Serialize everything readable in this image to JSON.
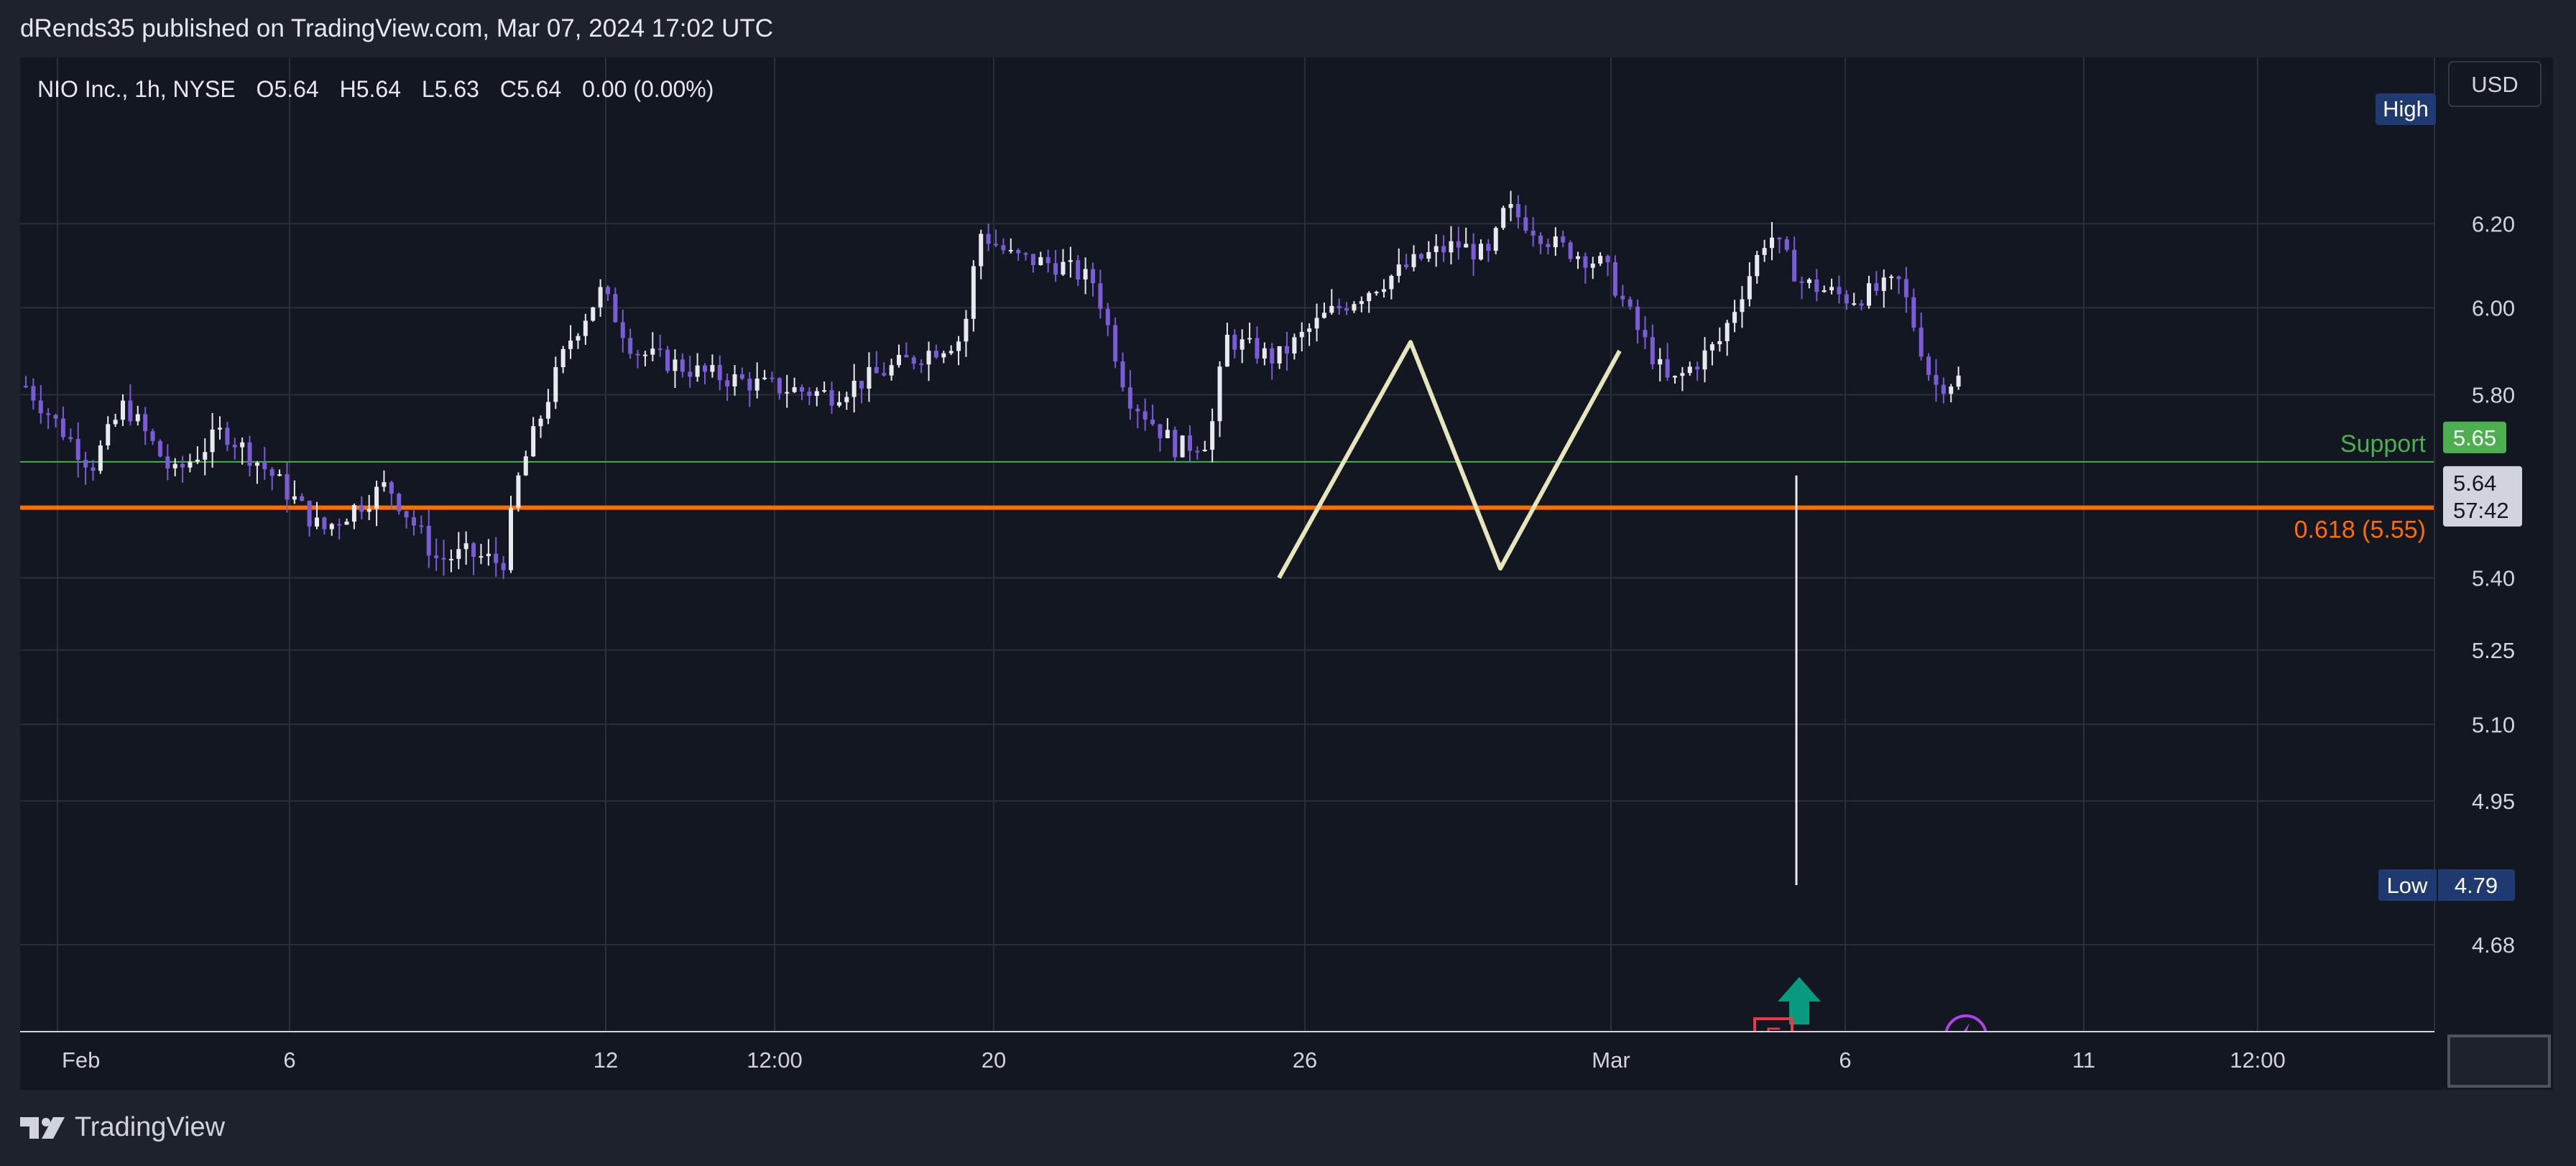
{
  "header": {
    "publisher_line": "dRends35 published on TradingView.com, Mar 07, 2024 17:02 UTC"
  },
  "footer": {
    "brand": "TradingView",
    "logo_icon": "tradingview-logo-icon"
  },
  "colors": {
    "background": "#131722",
    "grid": "#2a2e39",
    "up_candle": "#e9e9f0",
    "down_candle": "#7b5cd6",
    "support": "#4caf50",
    "fib": "#ff6d00",
    "pattern": "#e8e4bc",
    "current_price_bg": "#d1d4dc",
    "high_low_bg": "#1e3a70",
    "earnings": "#f23645",
    "dividend": "#b043e8",
    "arrow": "#089981"
  },
  "chart_data": {
    "type": "candlestick",
    "legend": {
      "symbol": "NIO Inc., 1h, NYSE",
      "open": "O5.64",
      "high": "H5.64",
      "low": "L5.63",
      "close": "C5.64",
      "change": "0.00 (0.00%)"
    },
    "currency_label": "USD",
    "y_scale": "log",
    "ylim": [
      4.62,
      6.32
    ],
    "y_ticks": [
      "6.20",
      "6.00",
      "5.80",
      "5.40",
      "5.25",
      "5.10",
      "4.95",
      "4.68"
    ],
    "x_ticks": [
      "Feb",
      "6",
      "12",
      "12:00",
      "20",
      "26",
      "Mar",
      "6",
      "11",
      "12:00"
    ],
    "bar_count": 260,
    "price_path": [
      [
        0,
        5.82
      ],
      [
        8,
        5.64
      ],
      [
        12,
        5.78
      ],
      [
        18,
        5.62
      ],
      [
        24,
        5.72
      ],
      [
        30,
        5.62
      ],
      [
        36,
        5.5
      ],
      [
        44,
        5.6
      ],
      [
        50,
        5.44
      ],
      [
        54,
        5.45
      ],
      [
        58,
        5.43
      ],
      [
        60,
        5.62
      ],
      [
        66,
        5.92
      ],
      [
        70,
        6.04
      ],
      [
        74,
        5.9
      ],
      [
        82,
        5.85
      ],
      [
        90,
        5.82
      ],
      [
        98,
        5.8
      ],
      [
        104,
        5.85
      ],
      [
        110,
        5.9
      ],
      [
        114,
        5.93
      ],
      [
        116,
        6.18
      ],
      [
        120,
        6.12
      ],
      [
        126,
        6.1
      ],
      [
        130,
        6.06
      ],
      [
        134,
        5.8
      ],
      [
        140,
        5.68
      ],
      [
        144,
        5.7
      ],
      [
        146,
        5.93
      ],
      [
        152,
        5.88
      ],
      [
        158,
        5.98
      ],
      [
        164,
        6.05
      ],
      [
        170,
        6.12
      ],
      [
        174,
        6.15
      ],
      [
        178,
        6.12
      ],
      [
        180,
        6.24
      ],
      [
        186,
        6.15
      ],
      [
        192,
        6.1
      ],
      [
        196,
        5.95
      ],
      [
        200,
        5.82
      ],
      [
        206,
        5.92
      ],
      [
        212,
        6.18
      ],
      [
        216,
        6.06
      ],
      [
        222,
        6.02
      ],
      [
        228,
        6.06
      ],
      [
        232,
        5.82
      ],
      [
        236,
        5.84
      ]
    ],
    "levels": [
      {
        "name": "Support",
        "value": 5.65,
        "price_label": "5.65"
      },
      {
        "name": "0.618 (5.55)",
        "value": 5.55
      }
    ],
    "current_price": {
      "value": 5.64,
      "label": "5.64",
      "countdown": "57:42"
    },
    "high_marker": {
      "label": "High"
    },
    "low_marker": {
      "label": "Low",
      "value": 4.79,
      "price_label": "4.79"
    },
    "pattern_points": [
      {
        "date": "2024-02-23",
        "price": 5.4
      },
      {
        "date": "2024-02-27",
        "price": 5.92
      },
      {
        "date": "2024-02-28",
        "price": 5.42
      },
      {
        "date": "2024-02-29",
        "price": 5.9
      }
    ],
    "events": [
      {
        "type": "earnings",
        "letter": "E",
        "date": "2024-03-05"
      },
      {
        "type": "dividend",
        "icon": "lightning-icon",
        "date": "2024-03-07"
      },
      {
        "type": "buy-arrow",
        "icon": "arrow-up-icon",
        "date": "2024-03-05"
      }
    ]
  }
}
